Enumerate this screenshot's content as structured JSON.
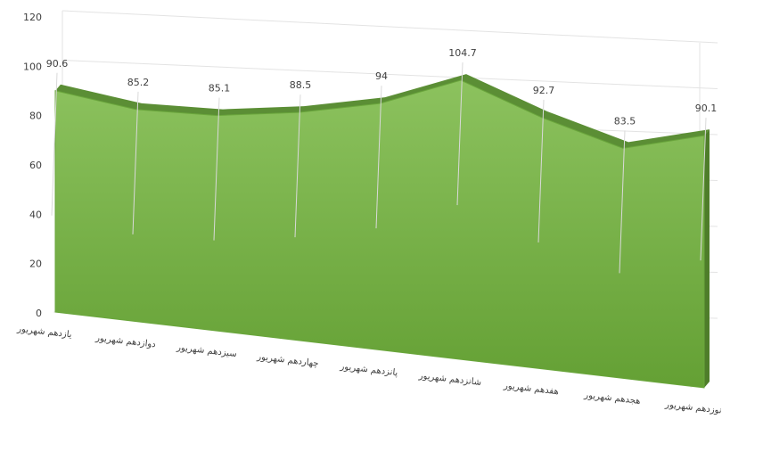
{
  "chart_data": {
    "type": "area",
    "categories": [
      "یازدهم شهریور",
      "دوازدهم شهریور",
      "سیزدهم شهریور",
      "چهاردهم شهریور",
      "پانزدهم شهریور",
      "شانزدهم شهریور",
      "هفدهم شهریور",
      "هجدهم شهریور",
      "نوزدهم شهریور"
    ],
    "values": [
      90.6,
      85.2,
      85.1,
      88.5,
      94,
      104.7,
      92.7,
      83.5,
      90.1
    ],
    "color": "#7ab648",
    "ylim": [
      0,
      120
    ],
    "yticks": [
      0,
      20,
      40,
      60,
      80,
      100,
      120
    ],
    "grid": true
  }
}
